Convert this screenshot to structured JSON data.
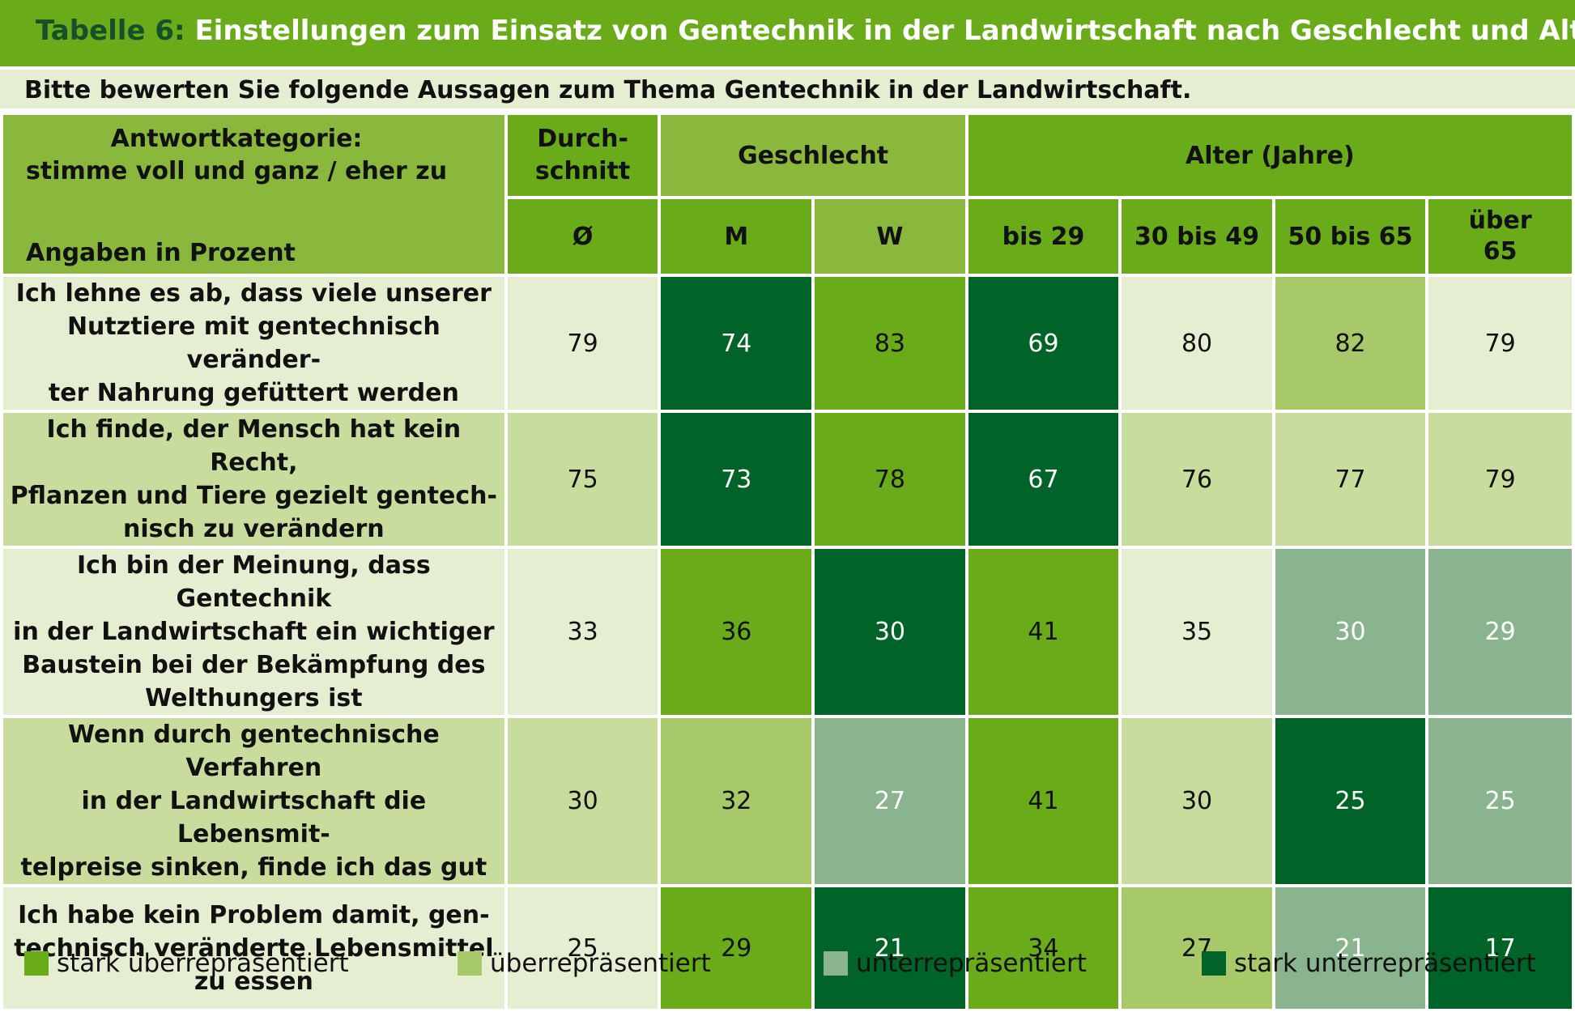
{
  "title": {
    "number": "Tabelle 6:",
    "text": " Einstellungen zum Einsatz von Gentechnik in der Landwirtschaft nach Geschlecht und Alter"
  },
  "subtitle": "Bitte bewerten Sie folgende Aussagen zum Thema Gentechnik in der Landwirtschaft.",
  "header": {
    "corner_line1": "Antwortkategorie:",
    "corner_line2": "stimme voll und ganz / eher zu",
    "corner_line3": "Angaben in Prozent",
    "avg_line1": "Durch-",
    "avg_line2": "schnitt",
    "gender": "Geschlecht",
    "age": "Alter (Jahre)",
    "sub": [
      "Ø",
      "M",
      "W",
      "bis 29",
      "30 bis 49",
      "50 bis 65",
      "über",
      "65"
    ]
  },
  "rows": [
    {
      "lines": [
        "Ich lehne es ab, dass viele unserer",
        "Nutztiere mit gentechnisch veränder-",
        "ter Nahrung gefüttert werden"
      ],
      "values": [
        "79",
        "74",
        "83",
        "69",
        "80",
        "82",
        "79"
      ],
      "classes": [
        "",
        "c-sn",
        "c-su",
        "c-sn",
        "",
        "c-u",
        ""
      ]
    },
    {
      "lines": [
        "Ich finde, der Mensch hat kein Recht,",
        "Pflanzen und Tiere gezielt gentech-",
        "nisch zu verändern"
      ],
      "values": [
        "75",
        "73",
        "78",
        "67",
        "76",
        "77",
        "79"
      ],
      "classes": [
        "",
        "c-sn",
        "c-su",
        "c-sn",
        "",
        "",
        ""
      ]
    },
    {
      "lines": [
        "Ich bin der Meinung, dass Gentechnik",
        "in der Landwirtschaft  ein wichtiger",
        "Baustein bei der Bekämpfung des",
        "Welthungers ist"
      ],
      "values": [
        "33",
        "36",
        "30",
        "41",
        "35",
        "30",
        "29"
      ],
      "classes": [
        "",
        "c-su",
        "c-sn",
        "c-su",
        "",
        "c-n",
        "c-n"
      ]
    },
    {
      "lines": [
        "Wenn durch gentechnische Verfahren",
        "in der Landwirtschaft die Lebensmit-",
        "telpreise sinken, finde ich das gut"
      ],
      "values": [
        "30",
        "32",
        "27",
        "41",
        "30",
        "25",
        "25"
      ],
      "classes": [
        "",
        "c-u",
        "c-n",
        "c-su",
        "",
        "c-sn",
        "c-n"
      ]
    },
    {
      "lines": [
        "Ich habe kein Problem damit, gen-",
        "technisch veränderte Lebensmittel",
        "zu essen"
      ],
      "values": [
        "25",
        "29",
        "21",
        "34",
        "27",
        "21",
        "17"
      ],
      "classes": [
        "",
        "c-su",
        "c-sn",
        "c-su",
        "c-u",
        "c-n",
        "c-sn"
      ]
    }
  ],
  "legend": {
    "strong_over": "stark überrepräsentiert",
    "over": "überrepräsentiert",
    "under": "unterrepräsentiert",
    "strong_under": "stark unterrepräsentiert",
    "colors": {
      "strong_over": "#6aab1a",
      "over": "#a8c96a",
      "under": "#8ab48e",
      "strong_under": "#006428"
    }
  }
}
